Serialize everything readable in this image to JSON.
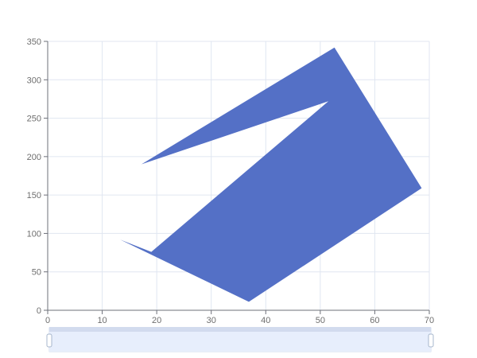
{
  "chart_data": {
    "type": "area",
    "title": "",
    "xlabel": "",
    "ylabel": "",
    "xlim": [
      0,
      70
    ],
    "ylim": [
      0,
      350
    ],
    "x_ticks": [
      0,
      10,
      20,
      30,
      40,
      50,
      60,
      70
    ],
    "y_ticks": [
      0,
      50,
      100,
      150,
      200,
      250,
      300,
      350
    ],
    "grid": true,
    "legend": "none",
    "series": [
      {
        "points": [
          {
            "x": 17.2,
            "y": 190
          },
          {
            "x": 52.6,
            "y": 342
          },
          {
            "x": 68.6,
            "y": 159
          },
          {
            "x": 36.9,
            "y": 11
          },
          {
            "x": 13.3,
            "y": 92
          },
          {
            "x": 19.0,
            "y": 76
          },
          {
            "x": 51.5,
            "y": 272
          }
        ],
        "color": "#5470c6"
      }
    ],
    "colors": {
      "fill": "#5470c6",
      "grid": "#e0e6f1",
      "axis": "#6e7079",
      "slider_fill": "#e7eefc",
      "slider_border": "#d2dbee"
    }
  },
  "zoom_slider": {
    "start_percent": 0,
    "end_percent": 100
  }
}
